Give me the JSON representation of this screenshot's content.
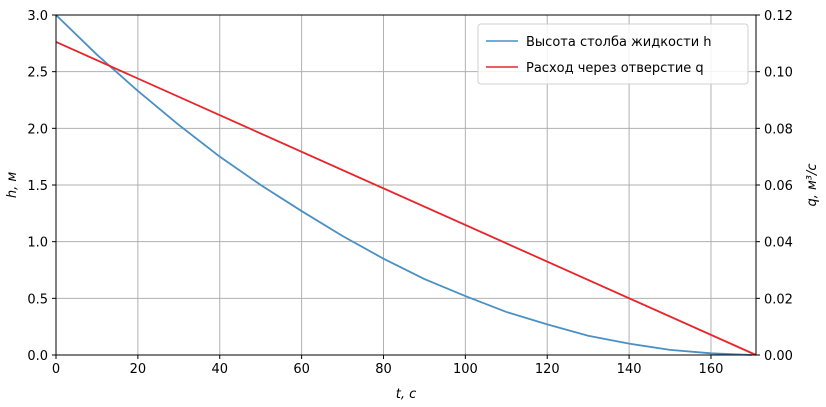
{
  "chart_data": {
    "type": "line",
    "xlabel": "t, с",
    "ylabel_left": "h, м",
    "ylabel_right": "q, м³/с",
    "xlim": [
      0,
      171
    ],
    "ylim_left": [
      0,
      3.0
    ],
    "ylim_right": [
      0,
      0.12
    ],
    "x_ticks": [
      0,
      20,
      40,
      60,
      80,
      100,
      120,
      140,
      160
    ],
    "y_left_ticks": [
      0.0,
      0.5,
      1.0,
      1.5,
      2.0,
      2.5,
      3.0
    ],
    "y_right_ticks": [
      0.0,
      0.02,
      0.04,
      0.06,
      0.08,
      0.1,
      0.12
    ],
    "x_tick_labels": [
      "0",
      "20",
      "40",
      "60",
      "80",
      "100",
      "120",
      "140",
      "160"
    ],
    "y_left_tick_labels": [
      "0.0",
      "0.5",
      "1.0",
      "1.5",
      "2.0",
      "2.5",
      "3.0"
    ],
    "y_right_tick_labels": [
      "0.00",
      "0.02",
      "0.04",
      "0.06",
      "0.08",
      "0.10",
      "0.12"
    ],
    "grid": true,
    "legend_position": "top-right",
    "series": [
      {
        "name": "Высота столба жидкости h",
        "axis": "left",
        "color": "#4a90c4",
        "x": [
          0,
          10,
          20,
          30,
          40,
          50,
          60,
          70,
          80,
          90,
          100,
          110,
          120,
          130,
          140,
          150,
          160,
          170
        ],
        "y": [
          3.0,
          2.65,
          2.33,
          2.03,
          1.75,
          1.5,
          1.27,
          1.05,
          0.85,
          0.67,
          0.52,
          0.38,
          0.27,
          0.17,
          0.1,
          0.045,
          0.015,
          0.0
        ]
      },
      {
        "name": "Расход через отверстие q",
        "axis": "right",
        "color": "#e8252b",
        "x": [
          0,
          171
        ],
        "y": [
          0.1105,
          0.0
        ]
      }
    ]
  }
}
